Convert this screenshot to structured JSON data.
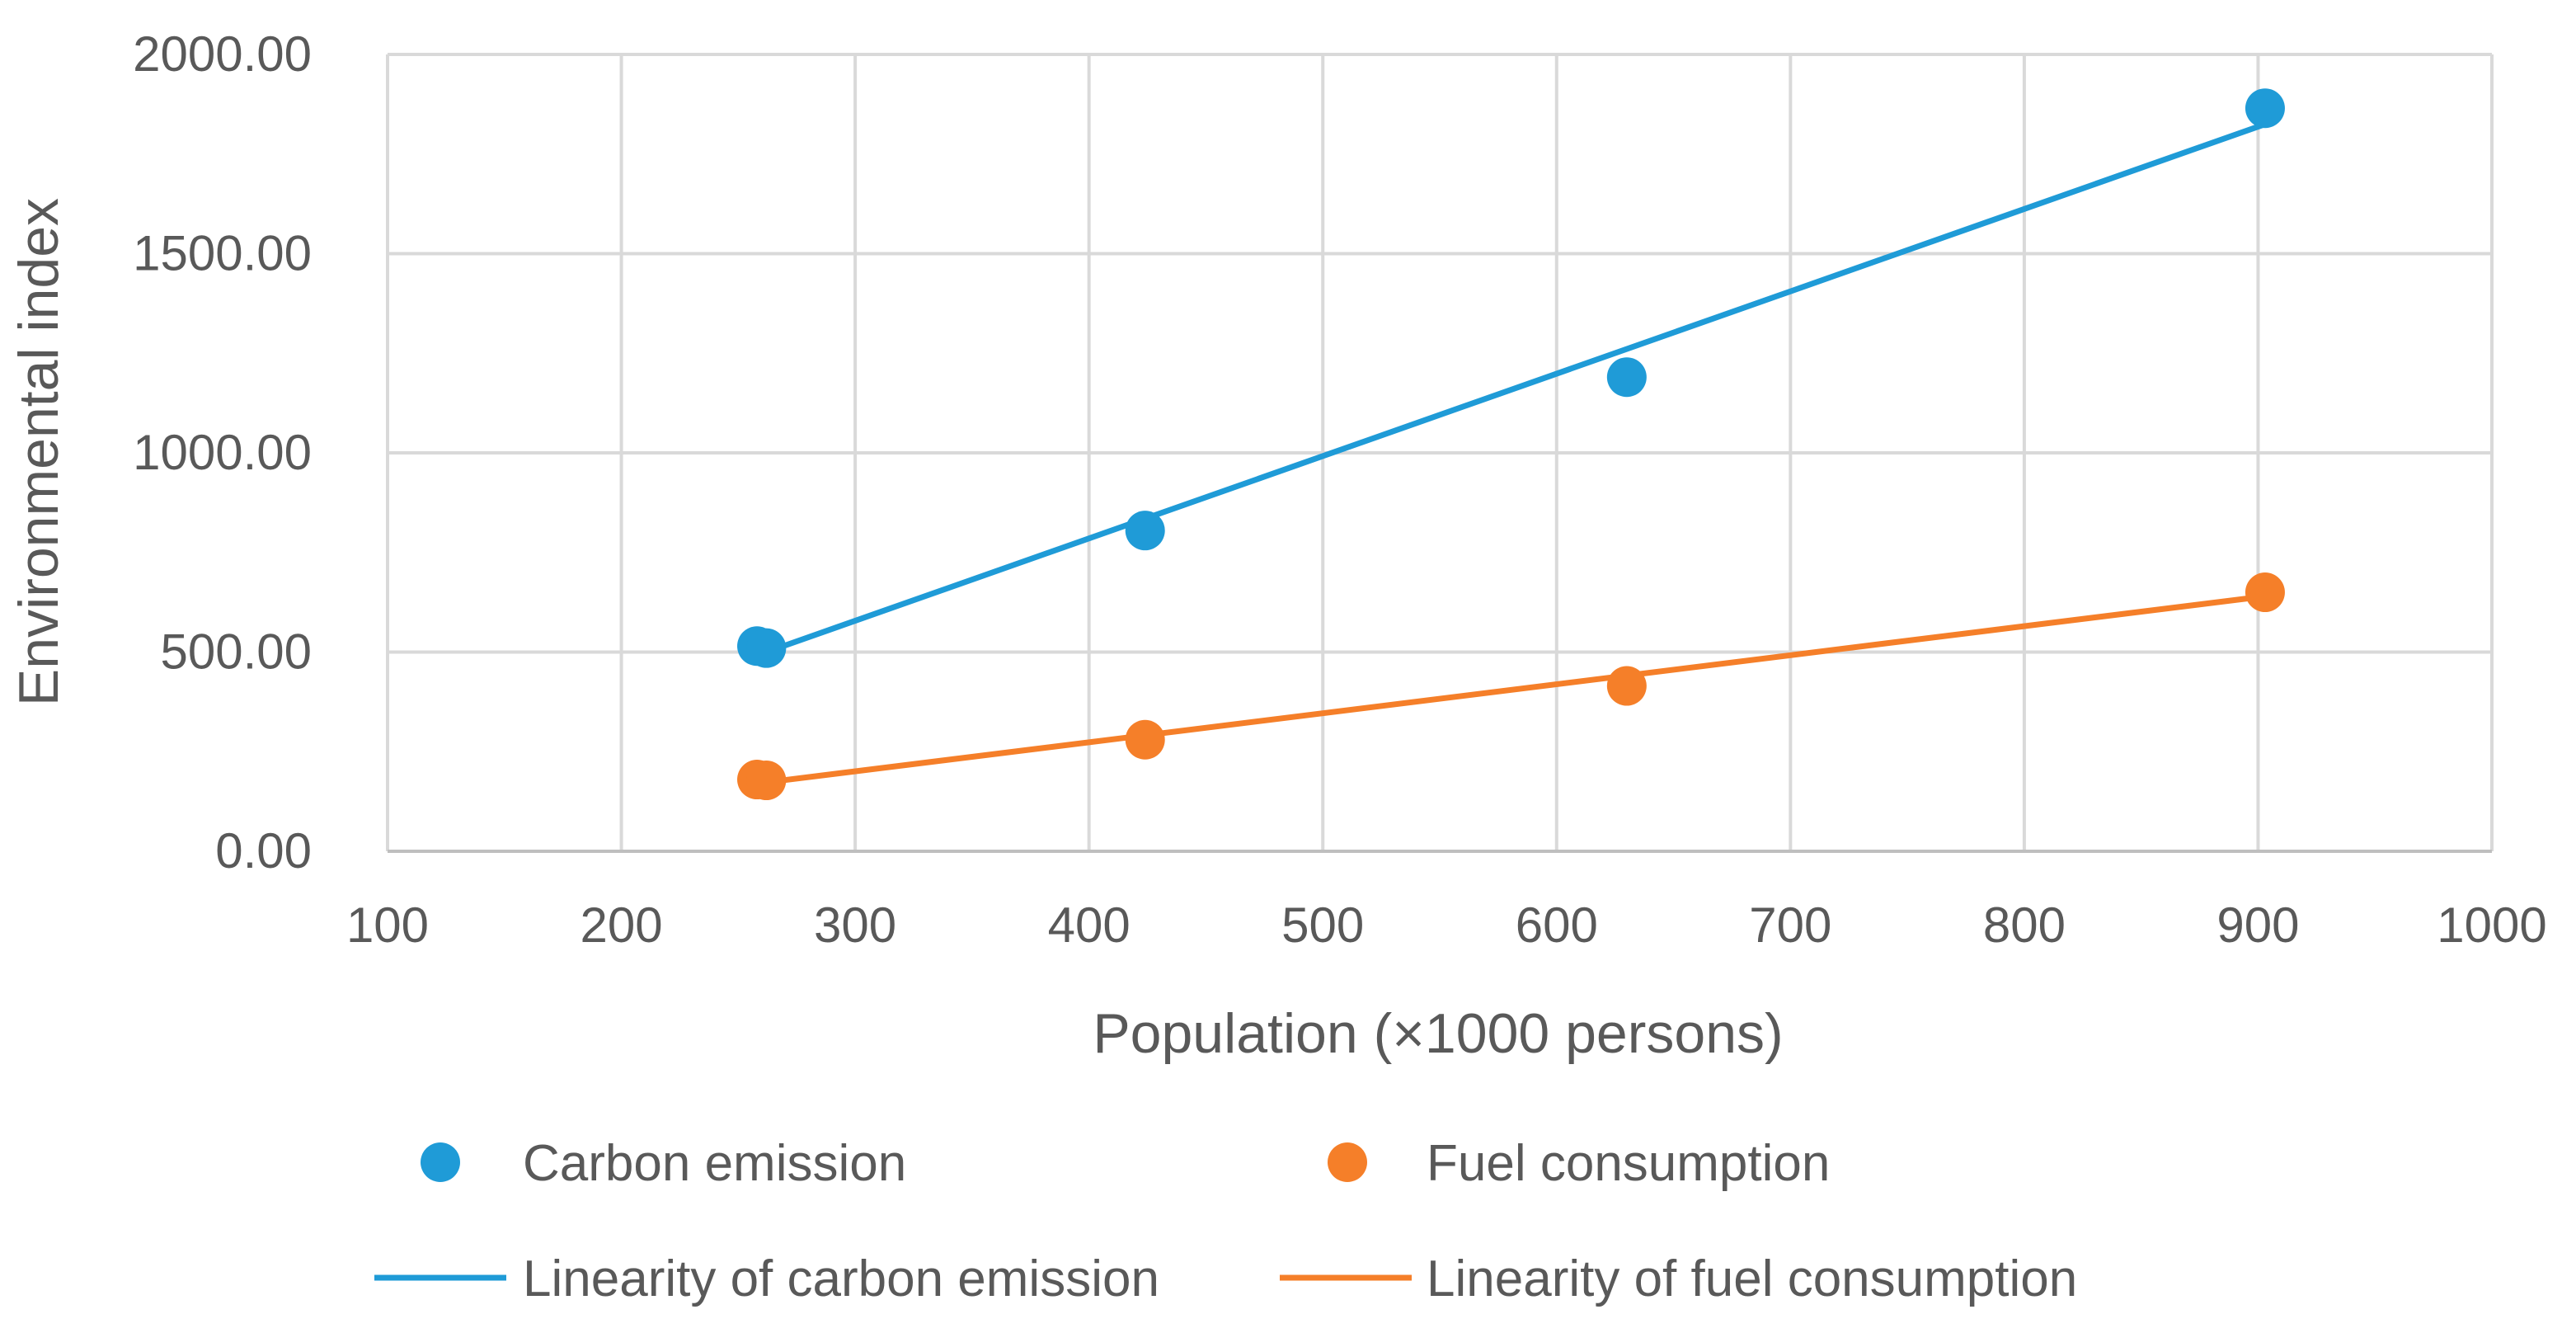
{
  "chart_data": {
    "type": "scatter",
    "title": "",
    "xlabel": "Population (×1000 persons)",
    "ylabel": "Environmental  index",
    "xlim": [
      100,
      1000
    ],
    "ylim": [
      0,
      2000
    ],
    "x_ticks": [
      100,
      200,
      300,
      400,
      500,
      600,
      700,
      800,
      900,
      1000
    ],
    "x_tick_labels": [
      "100",
      "200",
      "300",
      "400",
      "500",
      "600",
      "700",
      "800",
      "900",
      "1000"
    ],
    "y_ticks": [
      0,
      500,
      1000,
      1500,
      2000
    ],
    "y_tick_labels": [
      "0.00",
      "500.00",
      "1000.00",
      "1500.00",
      "2000.00"
    ],
    "grid": true,
    "legend_position": "bottom",
    "series": [
      {
        "name": "Carbon emission",
        "kind": "points",
        "color": "#1f9bd7",
        "points": [
          [
            258,
            515
          ],
          [
            262,
            510
          ],
          [
            424,
            805
          ],
          [
            630,
            1190
          ],
          [
            903,
            1865
          ]
        ]
      },
      {
        "name": "Fuel consumption",
        "kind": "points",
        "color": "#f57f29",
        "points": [
          [
            258,
            180
          ],
          [
            262,
            178
          ],
          [
            424,
            280
          ],
          [
            630,
            415
          ],
          [
            903,
            650
          ]
        ]
      },
      {
        "name": "Linearity of carbon emission",
        "kind": "line",
        "color": "#1f9bd7",
        "points": [
          [
            262,
            500
          ],
          [
            903,
            1825
          ]
        ]
      },
      {
        "name": "Linearity of fuel consumption",
        "kind": "line",
        "color": "#f57f29",
        "points": [
          [
            262,
            173
          ],
          [
            903,
            640
          ]
        ]
      }
    ]
  }
}
